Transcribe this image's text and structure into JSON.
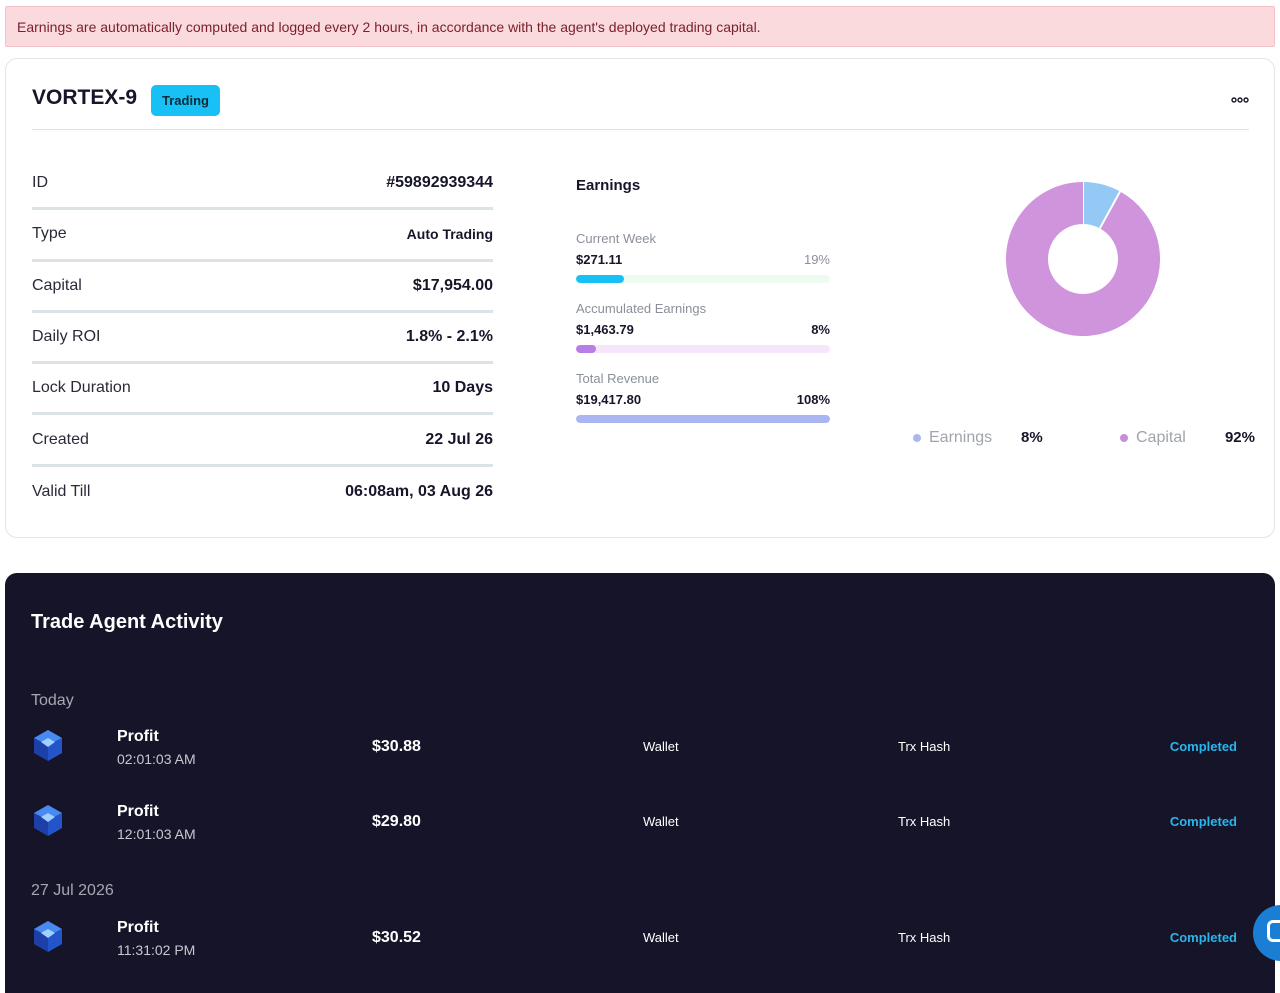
{
  "alert": {
    "text": "Earnings are automatically computed and logged every 2 hours, in accordance with the agent's deployed trading capital."
  },
  "agent": {
    "name": "VORTEX-9",
    "status_badge": "Trading",
    "details": [
      {
        "label": "ID",
        "value": "#59892939344"
      },
      {
        "label": "Type",
        "value": "Auto Trading"
      },
      {
        "label": "Capital",
        "value": "$17,954.00"
      },
      {
        "label": "Daily ROI",
        "value": "1.8% - 2.1%"
      },
      {
        "label": "Lock Duration",
        "value": "10 Days"
      },
      {
        "label": "Created",
        "value": "22 Jul 26"
      },
      {
        "label": "Valid Till",
        "value": "06:08am, 03 Aug 26"
      }
    ]
  },
  "earnings": {
    "title": "Earnings",
    "metrics": [
      {
        "label": "Current Week",
        "amount": "$271.11",
        "percent": "19%",
        "fill_fraction": 0.19,
        "fill_color": "#17c1f5",
        "track_color": "#eefcf0"
      },
      {
        "label": "Accumulated Earnings",
        "amount": "$1,463.79",
        "percent": "8%",
        "fill_fraction": 0.08,
        "fill_color": "#b97ee6",
        "track_color": "#f5e6fb"
      },
      {
        "label": "Total Revenue",
        "amount": "$19,417.80",
        "percent": "108%",
        "fill_fraction": 1.0,
        "fill_color": "#a9b6f2",
        "track_color": "#e6eaff"
      }
    ]
  },
  "chart_data": {
    "type": "pie",
    "categories": [
      "Earnings",
      "Capital"
    ],
    "values": [
      8,
      92
    ],
    "colors": [
      "#93c9f4",
      "#cf94dc"
    ],
    "legend_labels": [
      "Earnings",
      "Capital"
    ],
    "legend_values": [
      "8%",
      "92%"
    ],
    "legend_position": "bottom"
  },
  "activity": {
    "title": "Trade Agent Activity",
    "groups": [
      {
        "label": "Today",
        "items": [
          {
            "type": "Profit",
            "time": "02:01:03 AM",
            "amount": "$30.88",
            "wallet": "Wallet",
            "hash": "Trx Hash",
            "status": "Completed"
          },
          {
            "type": "Profit",
            "time": "12:01:03 AM",
            "amount": "$29.80",
            "wallet": "Wallet",
            "hash": "Trx Hash",
            "status": "Completed"
          }
        ]
      },
      {
        "label": "27 Jul 2026",
        "items": [
          {
            "type": "Profit",
            "time": "11:31:02 PM",
            "amount": "$30.52",
            "wallet": "Wallet",
            "hash": "Trx Hash",
            "status": "Completed"
          }
        ]
      }
    ]
  },
  "icons": {
    "more": "more-dots-icon",
    "tx": "cube-logo-icon",
    "chat": "chat-icon"
  }
}
